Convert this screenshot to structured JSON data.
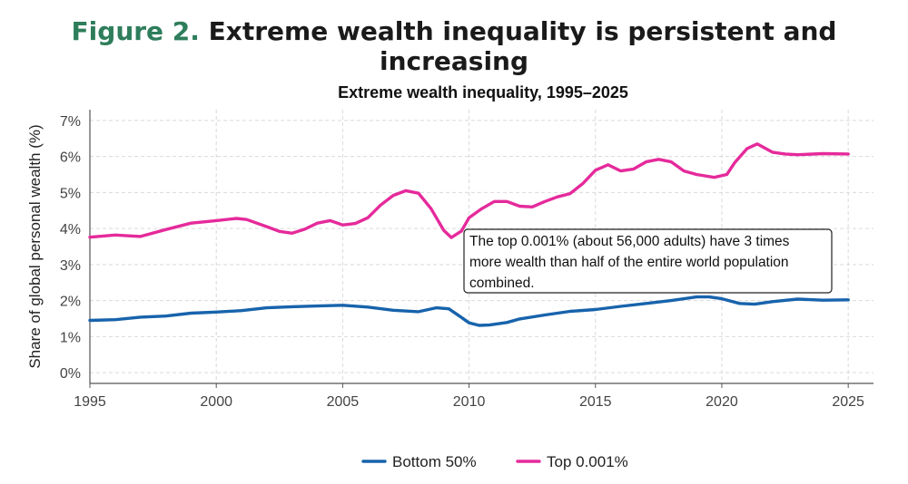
{
  "figure": {
    "number_label": "Figure 2.",
    "title": "Extreme wealth inequality is persistent and increasing"
  },
  "colors": {
    "bottom50": "#1763ac",
    "top0001": "#e52a9b",
    "grid": "#d9d9d9",
    "axis": "#555555",
    "text": "#333333"
  },
  "chart_data": {
    "type": "line",
    "title": "Extreme wealth inequality, 1995–2025",
    "xlabel": "",
    "ylabel": "Share of global personal wealth (%)",
    "xlim": [
      1995,
      2026
    ],
    "ylim": [
      -0.3,
      7.3
    ],
    "x_ticks": [
      1995,
      2000,
      2005,
      2010,
      2015,
      2020,
      2025
    ],
    "y_ticks": [
      0,
      1,
      2,
      3,
      4,
      5,
      6,
      7
    ],
    "y_tick_labels": [
      "0%",
      "1%",
      "2%",
      "3%",
      "4%",
      "5%",
      "6%",
      "7%"
    ],
    "grid": true,
    "legend_position": "bottom",
    "series": [
      {
        "name": "Bottom 50%",
        "color_key": "bottom50",
        "x": [
          1995,
          1996,
          1997,
          1998,
          1999,
          2000,
          2001,
          2002,
          2003,
          2004,
          2005,
          2006,
          2007,
          2008,
          2008.7,
          2009.2,
          2009.6,
          2010,
          2010.4,
          2010.8,
          2011.5,
          2012,
          2013,
          2014,
          2015,
          2016,
          2017,
          2018,
          2019,
          2019.5,
          2020,
          2020.7,
          2021.3,
          2022,
          2023,
          2024,
          2025
        ],
        "y": [
          1.45,
          1.47,
          1.54,
          1.57,
          1.65,
          1.68,
          1.72,
          1.8,
          1.83,
          1.85,
          1.87,
          1.82,
          1.73,
          1.69,
          1.8,
          1.77,
          1.58,
          1.38,
          1.31,
          1.32,
          1.39,
          1.49,
          1.6,
          1.7,
          1.75,
          1.84,
          1.92,
          2.0,
          2.1,
          2.1,
          2.05,
          1.92,
          1.9,
          1.97,
          2.04,
          2.01,
          2.02
        ]
      },
      {
        "name": "Top 0.001%",
        "color_key": "top0001",
        "x": [
          1995,
          1996,
          1997,
          1998,
          1999,
          2000,
          2000.8,
          2001.2,
          2002,
          2002.5,
          2003,
          2003.5,
          2004,
          2004.5,
          2005,
          2005.5,
          2006,
          2006.5,
          2007,
          2007.5,
          2008,
          2008.5,
          2009,
          2009.3,
          2009.7,
          2010,
          2010.5,
          2011,
          2011.5,
          2012,
          2012.5,
          2013,
          2013.5,
          2014,
          2014.5,
          2015,
          2015.5,
          2016,
          2016.5,
          2017,
          2017.5,
          2018,
          2018.5,
          2019,
          2019.7,
          2020.2,
          2020.5,
          2021,
          2021.4,
          2022,
          2022.5,
          2023,
          2024,
          2025
        ],
        "y": [
          3.76,
          3.82,
          3.78,
          3.97,
          4.15,
          4.22,
          4.28,
          4.25,
          4.05,
          3.92,
          3.87,
          3.98,
          4.15,
          4.22,
          4.1,
          4.14,
          4.3,
          4.65,
          4.92,
          5.05,
          4.98,
          4.55,
          3.95,
          3.75,
          3.93,
          4.3,
          4.55,
          4.75,
          4.75,
          4.62,
          4.6,
          4.75,
          4.88,
          4.97,
          5.25,
          5.62,
          5.77,
          5.6,
          5.65,
          5.85,
          5.92,
          5.85,
          5.6,
          5.5,
          5.42,
          5.5,
          5.82,
          6.22,
          6.35,
          6.12,
          6.07,
          6.05,
          6.08,
          6.07
        ]
      }
    ],
    "annotation": {
      "lines": [
        "The top 0.001% (about 56,000 adults) have 3 times",
        "more wealth than half of the entire world population",
        "combined."
      ]
    }
  }
}
